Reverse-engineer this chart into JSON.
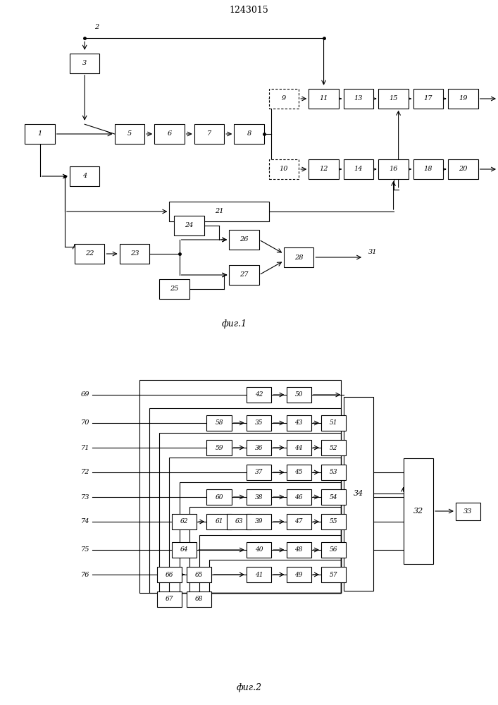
{
  "title": "1243015",
  "fig1_label": "фиг.1",
  "fig2_label": "фиг.2",
  "bg_color": "#ffffff",
  "lc": "#000000"
}
